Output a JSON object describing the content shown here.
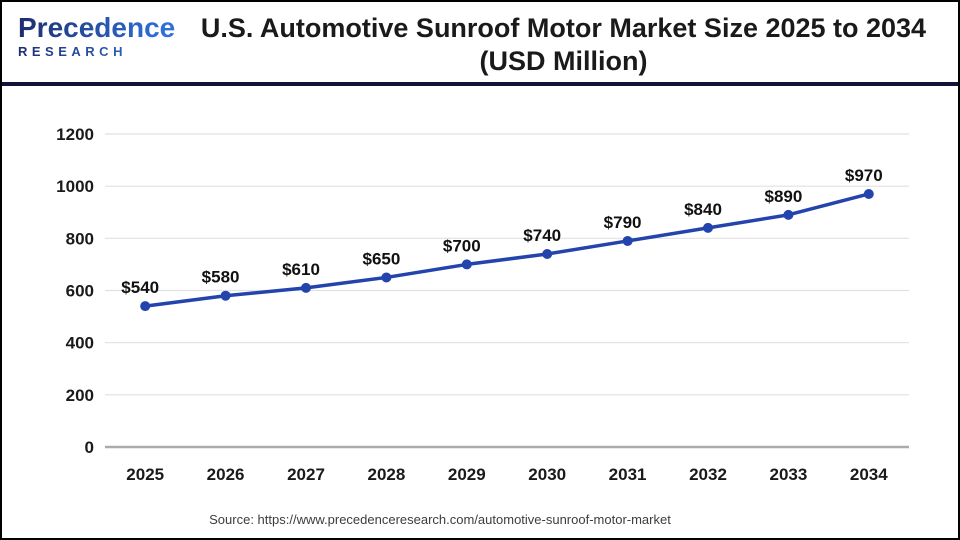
{
  "header": {
    "logo": {
      "line1": "Precedence",
      "line2": "RESEARCH"
    },
    "title_line1": "U.S. Automotive Sunroof Motor Market Size 2025 to 2034",
    "title_line2": "(USD Million)"
  },
  "footer": {
    "source": "Source: https://www.precedenceresearch.com/automotive-sunroof-motor-market"
  },
  "colors": {
    "line": "#2244AC",
    "marker": "#2244AC",
    "grid": "#E1E1E1",
    "axis_line": "#ABABAB",
    "text": "#1A1A1A",
    "separator": "#101439",
    "logo_dark": "#1D2E6E",
    "logo_light": "#2F6FD6",
    "source_text": "#3D3D3D"
  },
  "chart_data": {
    "type": "line",
    "title": "U.S. Automotive Sunroof Motor Market Size 2025 to 2034 (USD Million)",
    "categories": [
      "2025",
      "2026",
      "2027",
      "2028",
      "2029",
      "2030",
      "2031",
      "2032",
      "2033",
      "2034"
    ],
    "values": [
      540,
      580,
      610,
      650,
      700,
      740,
      790,
      840,
      890,
      970
    ],
    "point_labels": [
      "$540",
      "$580",
      "$610",
      "$650",
      "$700",
      "$740",
      "$790",
      "$840",
      "$890",
      "$970"
    ],
    "xlabel": "",
    "ylabel": "",
    "ylim": [
      0,
      1200
    ],
    "yticks": [
      0,
      200,
      400,
      600,
      800,
      1000,
      1200
    ],
    "grid": "horizontal",
    "legend": "none",
    "marker": "circle"
  }
}
